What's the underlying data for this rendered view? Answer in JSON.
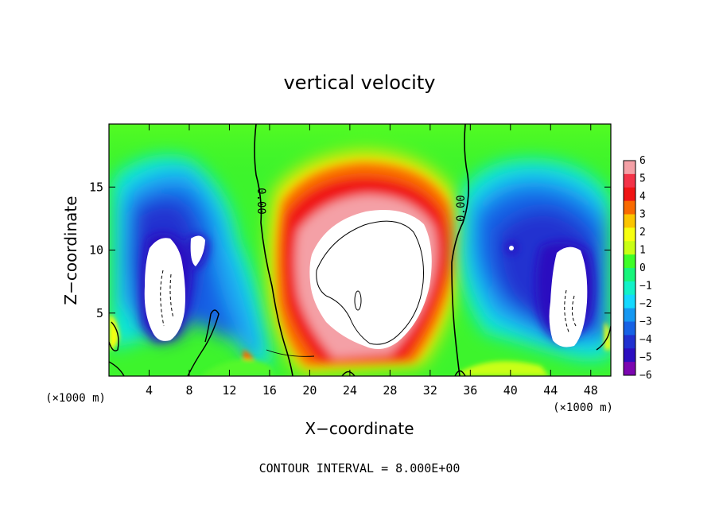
{
  "chart_data": {
    "type": "heatmap",
    "title": "vertical velocity",
    "xlabel": "X−coordinate",
    "ylabel": "Z−coordinate",
    "x_unit": "(×1000 m)",
    "x_unit_right": "(×1000 m)",
    "xlim": [
      0,
      50
    ],
    "ylim": [
      0,
      20
    ],
    "xticks": [
      4,
      8,
      12,
      16,
      20,
      24,
      28,
      32,
      36,
      40,
      44,
      48
    ],
    "xtick_labels": [
      "4",
      "8",
      "12",
      "16",
      "20",
      "24",
      "28",
      "32",
      "36",
      "40",
      "44",
      "48"
    ],
    "yticks": [
      5,
      10,
      15
    ],
    "ytick_labels": [
      "5",
      "10",
      "15"
    ],
    "note": "CONTOUR INTERVAL = 8.000E+00",
    "colorbar": {
      "min": -6,
      "max": 6,
      "ticks": [
        6,
        5,
        4,
        3,
        2,
        1,
        0,
        -1,
        -2,
        -3,
        -4,
        -5,
        -6
      ],
      "tick_labels": [
        "6",
        "5",
        "4",
        "3",
        "2",
        "1",
        "0",
        "−1",
        "−2",
        "−3",
        "−4",
        "−5",
        "−6"
      ],
      "colors": [
        "#f4a0a6",
        "#f33348",
        "#f01414",
        "#f96a00",
        "#fbc500",
        "#f7ff10",
        "#c9ff14",
        "#3efe28",
        "#17f57a",
        "#12f2c8",
        "#14d9ff",
        "#1598f2",
        "#1762e5",
        "#2131d0",
        "#2c0ec0",
        "#7c06b0"
      ]
    },
    "contour_labels": [
      {
        "text": "0.00",
        "x": 15.5,
        "y": 14
      },
      {
        "text": "0.00",
        "x": 35.5,
        "y": 13
      }
    ],
    "features": [
      {
        "kind": "updraft",
        "x": 24.5,
        "y": 9.8,
        "peak": 10
      },
      {
        "kind": "downdraft",
        "x": 6.5,
        "y": 8.8,
        "peak": -12
      },
      {
        "kind": "downdraft",
        "x": 45.5,
        "y": 7.2,
        "peak": -12
      }
    ]
  }
}
